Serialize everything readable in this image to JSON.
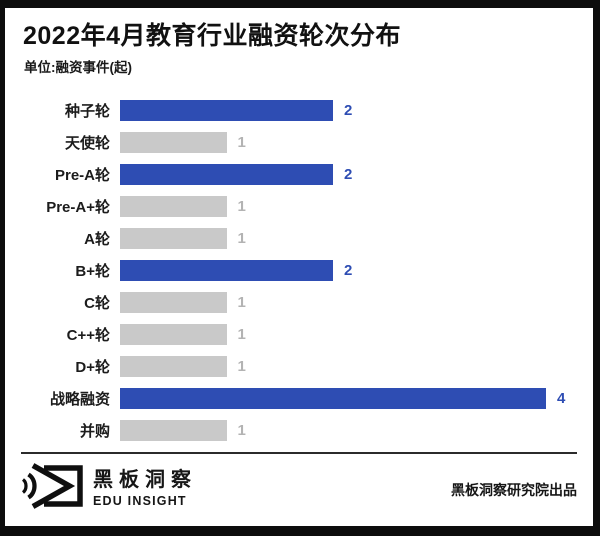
{
  "header": {
    "title": "2022年4月教育行业融资轮次分布",
    "unit_label": "单位:融资事件(起)"
  },
  "chart_data": {
    "type": "bar",
    "orientation": "horizontal",
    "title": "2022年4月教育行业融资轮次分布",
    "unit": "融资事件(起)",
    "categories": [
      "种子轮",
      "天使轮",
      "Pre-A轮",
      "Pre-A+轮",
      "A轮",
      "B+轮",
      "C轮",
      "C++轮",
      "D+轮",
      "战略融资",
      "并购"
    ],
    "values": [
      2,
      1,
      2,
      1,
      1,
      2,
      1,
      1,
      1,
      4,
      1
    ],
    "emphasized": [
      true,
      false,
      true,
      false,
      false,
      true,
      false,
      false,
      false,
      true,
      false
    ],
    "xlim": [
      0,
      4
    ],
    "value_labels_shown": true,
    "legend": "none",
    "grid": "off",
    "colors": {
      "emphasis_bar": "#2e4db3",
      "muted_bar": "#c9c9c9",
      "emphasis_value": "#2e4db3",
      "muted_value": "#b3b3b3"
    }
  },
  "footer": {
    "brand_cn": "黑板洞察",
    "brand_en": "EDU INSIGHT",
    "credit": "黑板洞察研究院出品",
    "logo_icon": "eye-blackboard-logo-icon"
  }
}
